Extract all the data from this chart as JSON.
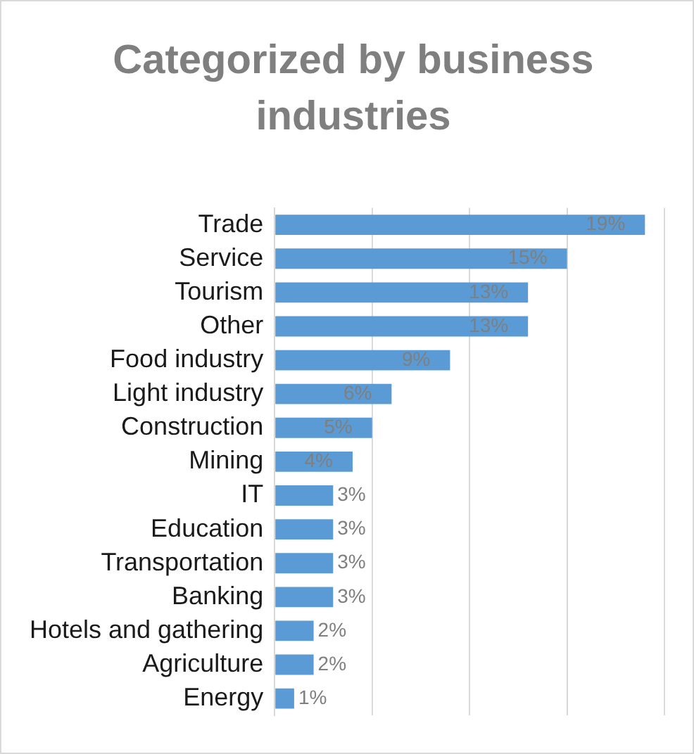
{
  "chart_data": {
    "type": "bar",
    "orientation": "horizontal",
    "title": "Categorized by business industries",
    "categories": [
      "Trade",
      "Service",
      "Tourism",
      "Other",
      "Food industry",
      "Light industry",
      "Construction",
      "Mining",
      "IT",
      "Education",
      "Transportation",
      "Banking",
      "Hotels and gathering",
      "Agriculture",
      "Energy"
    ],
    "values": [
      19,
      15,
      13,
      13,
      9,
      6,
      5,
      4,
      3,
      3,
      3,
      3,
      2,
      2,
      1
    ],
    "value_labels": [
      "19%",
      "15%",
      "13%",
      "13%",
      "9%",
      "6%",
      "5%",
      "4%",
      "3%",
      "3%",
      "3%",
      "3%",
      "2%",
      "2%",
      "1%"
    ],
    "color": "#5b9bd5",
    "xlim": [
      0,
      20
    ],
    "xticks": [
      {
        "value": 0,
        "label": null
      },
      {
        "value": 5,
        "label": null
      },
      {
        "value": 10,
        "label": null
      },
      {
        "value": 15,
        "label": null
      },
      {
        "value": 20,
        "label": null
      }
    ],
    "grid": "x"
  }
}
